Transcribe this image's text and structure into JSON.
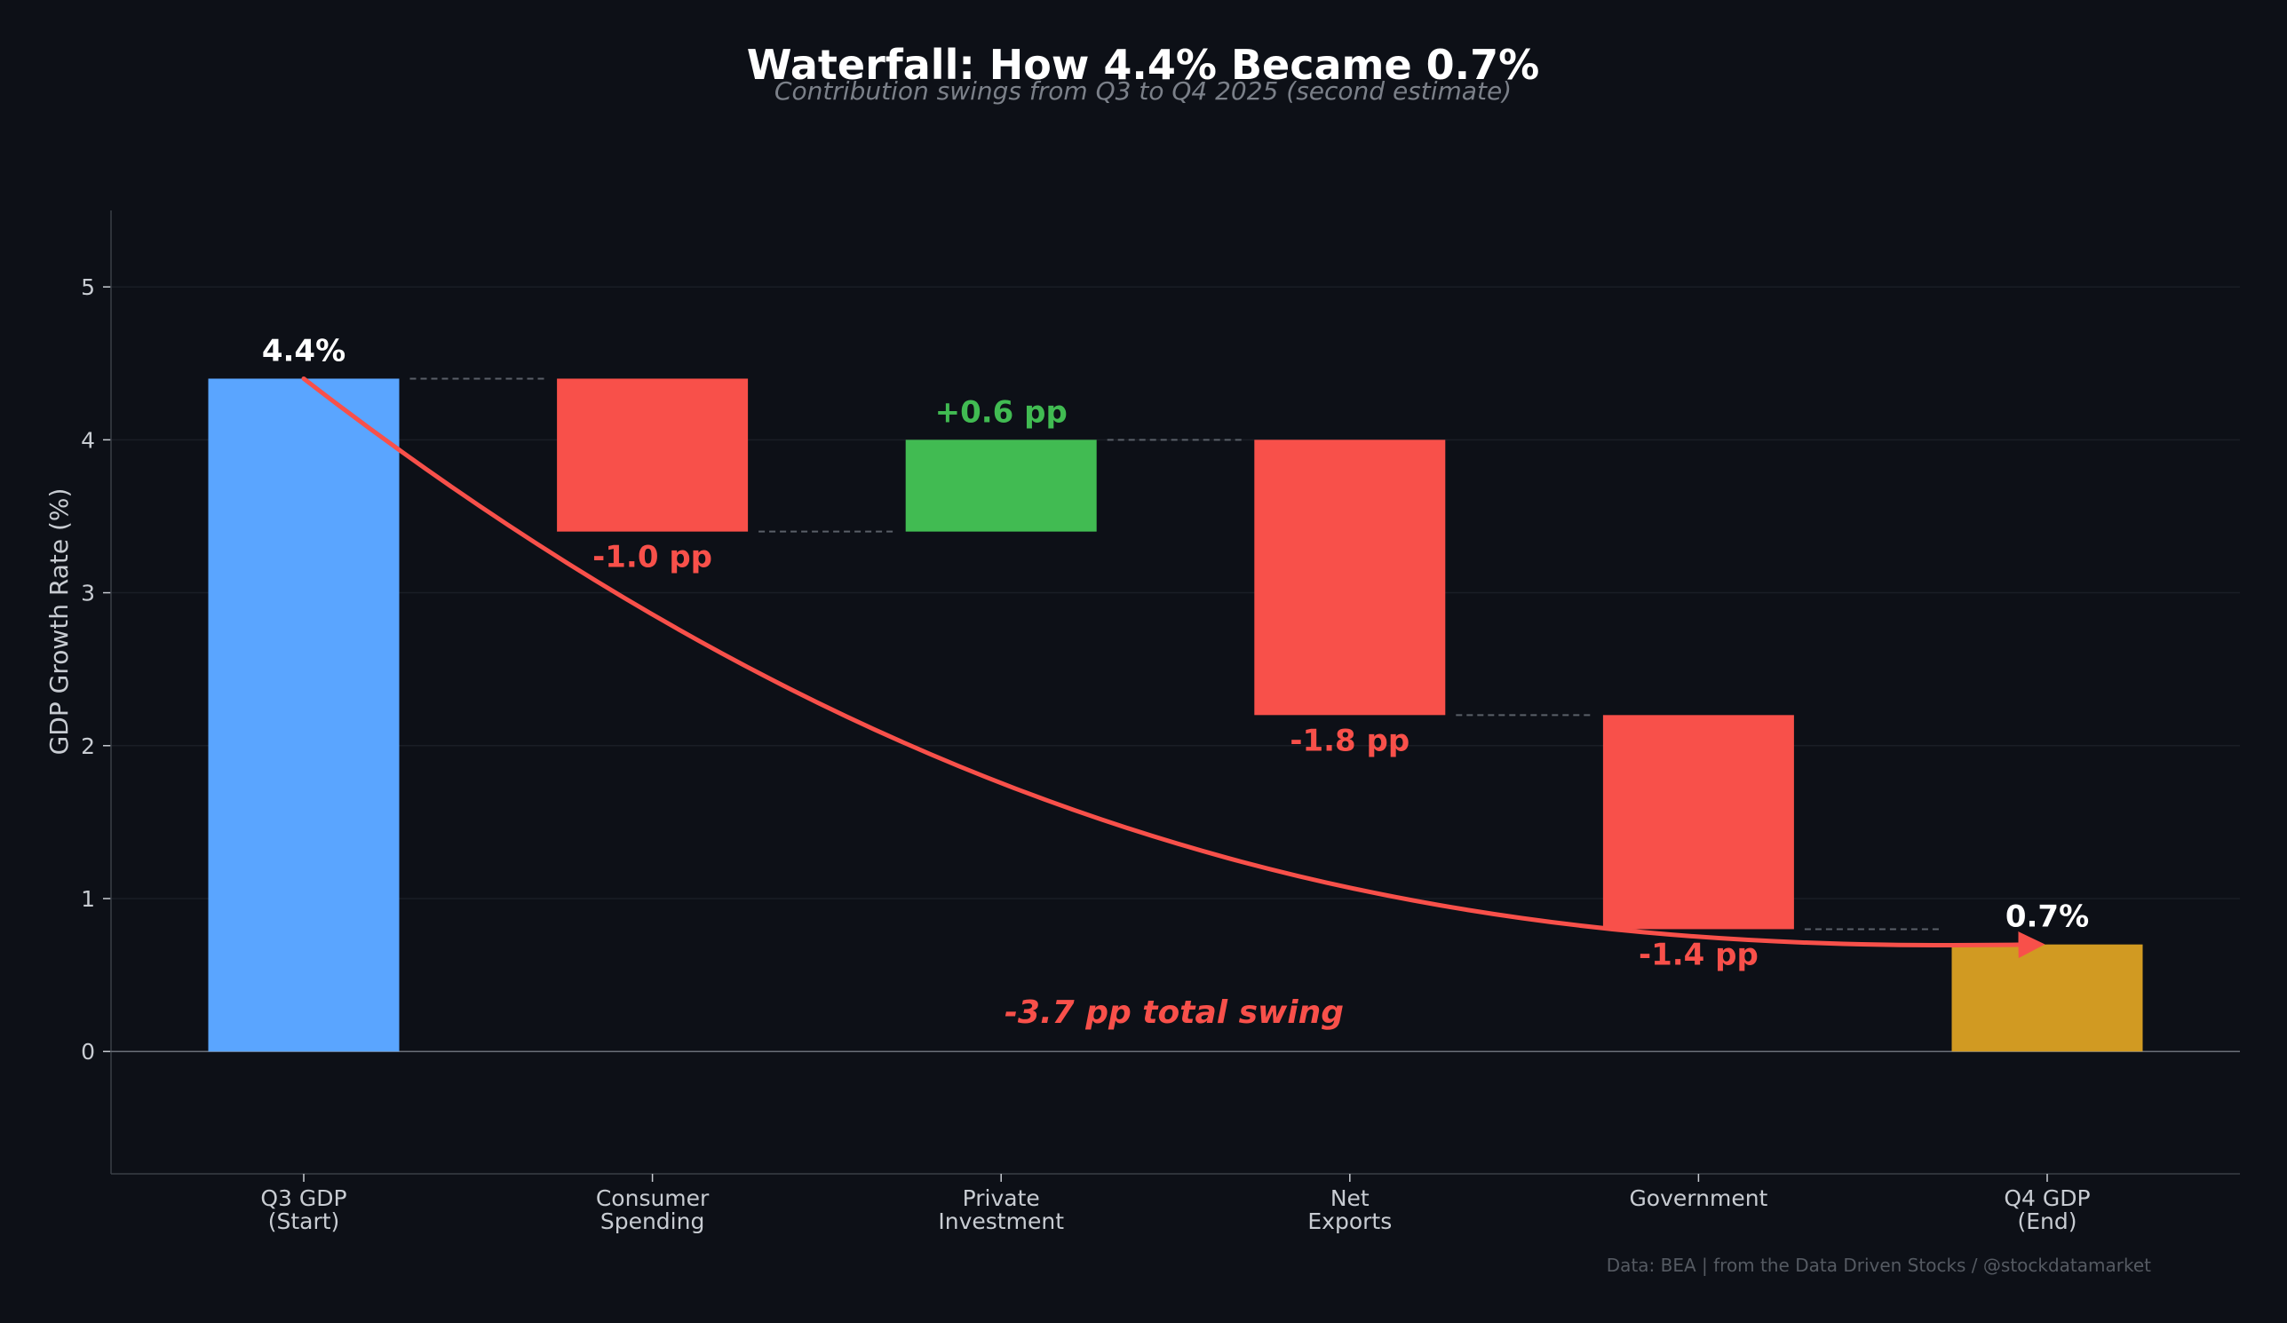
{
  "colors": {
    "background": "#0d1017",
    "start_bar": "#5aa5ff",
    "end_bar": "#d19a22",
    "positive": "#41bb52",
    "negative": "#f8504a",
    "text_white": "#ffffff",
    "text_light": "#c8ccd2",
    "text_dim": "#7b8089",
    "text_faint": "#555a62",
    "axis": "#3a3f47",
    "grid": "#1a1e26",
    "connector": "#5a5f68"
  },
  "chart_data": {
    "type": "waterfall",
    "title": "Waterfall: How 4.4% Became 0.7%",
    "subtitle": "Contribution swings from Q3 to Q4 2025 (second estimate)",
    "xlabel": "",
    "ylabel": "GDP Growth Rate (%)",
    "ylim": [
      -0.8,
      5.5
    ],
    "yticks": [
      0,
      1,
      2,
      3,
      4,
      5
    ],
    "grid": true,
    "categories": [
      [
        "Q3 GDP",
        "(Start)"
      ],
      [
        "Consumer",
        "Spending"
      ],
      [
        "Private",
        "Investment"
      ],
      [
        "Net",
        "Exports"
      ],
      [
        "Government"
      ],
      [
        "Q4 GDP",
        "(End)"
      ]
    ],
    "bars": [
      {
        "kind": "total",
        "bottom": 0,
        "top": 4.4,
        "label": "4.4%",
        "color_key": "start_bar",
        "label_color_key": "text_white",
        "label_side": "above"
      },
      {
        "kind": "delta",
        "bottom": 3.4,
        "top": 4.4,
        "value": -1.0,
        "label": "-1.0 pp",
        "color_key": "negative",
        "label_color_key": "negative",
        "label_side": "below"
      },
      {
        "kind": "delta",
        "bottom": 3.4,
        "top": 4.0,
        "value": 0.6,
        "label": "+0.6 pp",
        "color_key": "positive",
        "label_color_key": "positive",
        "label_side": "above"
      },
      {
        "kind": "delta",
        "bottom": 2.2,
        "top": 4.0,
        "value": -1.8,
        "label": "-1.8 pp",
        "color_key": "negative",
        "label_color_key": "negative",
        "label_side": "below"
      },
      {
        "kind": "delta",
        "bottom": 0.8,
        "top": 2.2,
        "value": -1.4,
        "label": "-1.4 pp",
        "color_key": "negative",
        "label_color_key": "negative",
        "label_side": "below"
      },
      {
        "kind": "total",
        "bottom": 0,
        "top": 0.7,
        "label": "0.7%",
        "color_key": "end_bar",
        "label_color_key": "text_white",
        "label_side": "above"
      }
    ],
    "connectors": [
      4.4,
      3.4,
      4.0,
      2.2,
      0.8
    ],
    "swing_arrow": {
      "from_value": 4.4,
      "to_value": 0.7
    },
    "annotation": "-3.7 pp total swing",
    "source_note": "Data: BEA | from the Data Driven Stocks / @stockdatamarket"
  }
}
